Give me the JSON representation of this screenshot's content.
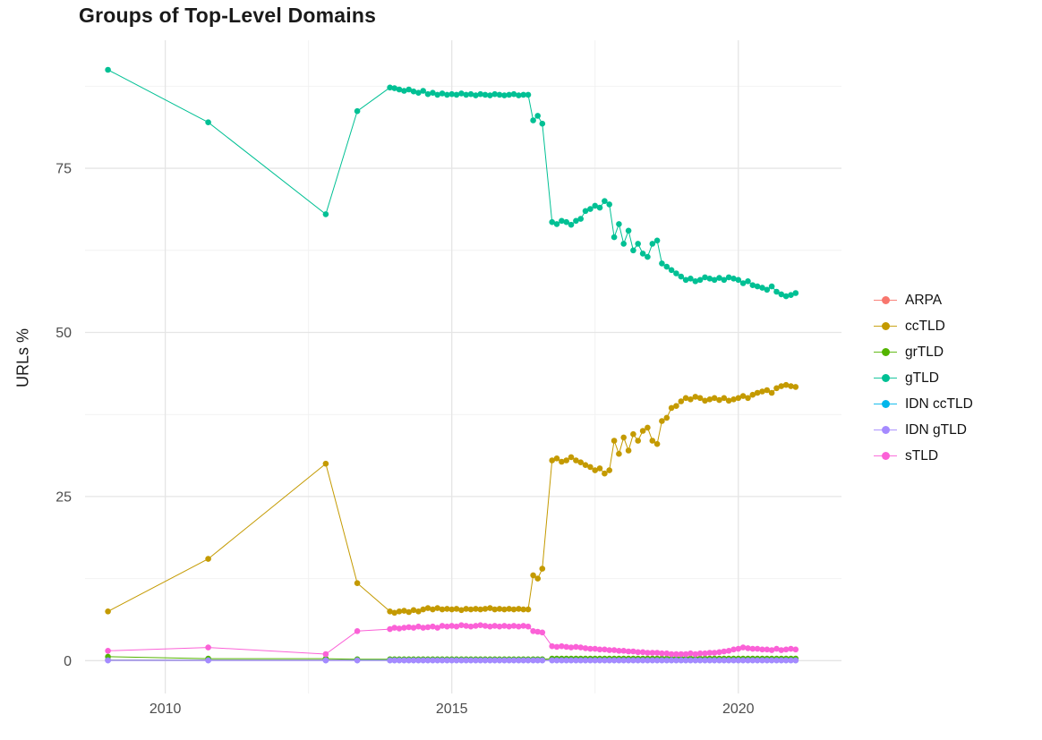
{
  "chart_data": {
    "type": "line",
    "title": "Groups of Top-Level Domains",
    "xlabel": "",
    "ylabel": "URLs %",
    "legend_position": "right",
    "grid": true,
    "xlim": [
      2008.6,
      2021.8
    ],
    "ylim": [
      -5,
      94.5
    ],
    "x_ticks": {
      "values": [
        2010,
        2015,
        2020
      ],
      "labels": [
        "2010",
        "2015",
        "2020"
      ]
    },
    "y_ticks": {
      "values": [
        0,
        25,
        50,
        75
      ],
      "labels": [
        "0",
        "25",
        "50",
        "75"
      ]
    },
    "x_minor": [
      2012.5,
      2017.5
    ],
    "y_minor": [
      12.5,
      37.5,
      62.5,
      87.5
    ],
    "x": [
      2009.0,
      2010.75,
      2012.8,
      2013.35,
      2013.92,
      2014.0,
      2014.083,
      2014.167,
      2014.25,
      2014.333,
      2014.417,
      2014.5,
      2014.583,
      2014.667,
      2014.75,
      2014.833,
      2014.917,
      2015.0,
      2015.083,
      2015.167,
      2015.25,
      2015.333,
      2015.417,
      2015.5,
      2015.583,
      2015.667,
      2015.75,
      2015.833,
      2015.917,
      2016.0,
      2016.083,
      2016.167,
      2016.25,
      2016.333,
      2016.42,
      2016.5,
      2016.58,
      2016.75,
      2016.833,
      2016.917,
      2017.0,
      2017.083,
      2017.167,
      2017.25,
      2017.333,
      2017.417,
      2017.5,
      2017.583,
      2017.667,
      2017.75,
      2017.833,
      2017.917,
      2018.0,
      2018.083,
      2018.167,
      2018.25,
      2018.333,
      2018.417,
      2018.5,
      2018.583,
      2018.667,
      2018.75,
      2018.833,
      2018.917,
      2019.0,
      2019.083,
      2019.167,
      2019.25,
      2019.333,
      2019.417,
      2019.5,
      2019.583,
      2019.667,
      2019.75,
      2019.833,
      2019.917,
      2020.0,
      2020.083,
      2020.167,
      2020.25,
      2020.333,
      2020.417,
      2020.5,
      2020.583,
      2020.667,
      2020.75,
      2020.833,
      2020.917,
      2021.0
    ],
    "series": [
      {
        "name": "ARPA",
        "color": "#F8766D",
        "y_const": 0.1
      },
      {
        "name": "ccTLD",
        "color": "#C49A00",
        "y": [
          7.5,
          15.5,
          30.0,
          11.8,
          7.5,
          7.3,
          7.5,
          7.6,
          7.4,
          7.7,
          7.5,
          7.8,
          8.0,
          7.8,
          8.0,
          7.8,
          7.9,
          7.8,
          7.9,
          7.7,
          7.9,
          7.8,
          7.9,
          7.8,
          7.9,
          8.0,
          7.8,
          7.9,
          7.8,
          7.9,
          7.8,
          7.9,
          7.8,
          7.8,
          13.0,
          12.5,
          14.0,
          30.5,
          30.8,
          30.3,
          30.5,
          31.0,
          30.5,
          30.2,
          29.8,
          29.5,
          29.0,
          29.3,
          28.5,
          29.0,
          33.5,
          31.5,
          34.0,
          32.0,
          34.5,
          33.5,
          35.0,
          35.5,
          33.5,
          33.0,
          36.5,
          37.0,
          38.5,
          38.8,
          39.5,
          40.0,
          39.8,
          40.2,
          40.0,
          39.6,
          39.8,
          40.0,
          39.7,
          40.0,
          39.6,
          39.8,
          40.0,
          40.3,
          40.0,
          40.5,
          40.8,
          41.0,
          41.2,
          40.8,
          41.5,
          41.8,
          42.0,
          41.8,
          41.7
        ]
      },
      {
        "name": "grTLD",
        "color": "#53B400",
        "y": [
          0.6,
          0.3,
          0.3,
          0.2,
          0.2,
          0.2,
          0.2,
          0.2,
          0.2,
          0.2,
          0.2,
          0.2,
          0.2,
          0.2,
          0.2,
          0.2,
          0.2,
          0.2,
          0.2,
          0.2,
          0.2,
          0.2,
          0.2,
          0.2,
          0.2,
          0.2,
          0.2,
          0.2,
          0.2,
          0.2,
          0.2,
          0.2,
          0.2,
          0.2,
          0.2,
          0.2,
          0.2,
          0.3,
          0.3,
          0.3,
          0.3,
          0.3,
          0.3,
          0.3,
          0.3,
          0.3,
          0.3,
          0.3,
          0.3,
          0.3,
          0.3,
          0.3,
          0.3,
          0.3,
          0.3,
          0.3,
          0.3,
          0.3,
          0.3,
          0.3,
          0.3,
          0.3,
          0.3,
          0.3,
          0.3,
          0.3,
          0.3,
          0.3,
          0.3,
          0.3,
          0.3,
          0.3,
          0.3,
          0.3,
          0.3,
          0.3,
          0.3,
          0.3,
          0.3,
          0.3,
          0.3,
          0.3,
          0.3,
          0.3,
          0.3,
          0.3,
          0.3,
          0.3,
          0.3
        ]
      },
      {
        "name": "gTLD",
        "color": "#00C094",
        "y": [
          90.0,
          82.0,
          68.0,
          83.7,
          87.3,
          87.2,
          87.0,
          86.8,
          87.0,
          86.7,
          86.5,
          86.8,
          86.3,
          86.5,
          86.2,
          86.4,
          86.2,
          86.3,
          86.2,
          86.4,
          86.2,
          86.3,
          86.1,
          86.3,
          86.2,
          86.1,
          86.3,
          86.2,
          86.1,
          86.2,
          86.3,
          86.1,
          86.2,
          86.2,
          82.3,
          83.0,
          81.8,
          66.8,
          66.5,
          67.0,
          66.8,
          66.4,
          67.0,
          67.3,
          68.5,
          68.8,
          69.3,
          69.0,
          70.0,
          69.5,
          64.5,
          66.5,
          63.5,
          65.5,
          62.5,
          63.5,
          62.0,
          61.5,
          63.5,
          64.0,
          60.5,
          60.0,
          59.5,
          59.0,
          58.5,
          58.0,
          58.2,
          57.8,
          58.0,
          58.4,
          58.2,
          58.0,
          58.3,
          58.0,
          58.4,
          58.2,
          58.0,
          57.5,
          57.8,
          57.2,
          57.0,
          56.8,
          56.5,
          57.0,
          56.2,
          55.8,
          55.5,
          55.7,
          56.0
        ]
      },
      {
        "name": "IDN ccTLD",
        "color": "#00B6EB",
        "y_const": 0.05
      },
      {
        "name": "IDN gTLD",
        "color": "#A58AFF",
        "y_const": 0.03
      },
      {
        "name": "sTLD",
        "color": "#FB61D7",
        "y": [
          1.5,
          2.0,
          1.0,
          4.5,
          4.8,
          5.0,
          4.9,
          5.0,
          5.1,
          5.0,
          5.2,
          5.0,
          5.1,
          5.2,
          5.0,
          5.3,
          5.2,
          5.3,
          5.2,
          5.4,
          5.3,
          5.2,
          5.3,
          5.4,
          5.3,
          5.2,
          5.3,
          5.2,
          5.3,
          5.2,
          5.3,
          5.2,
          5.3,
          5.2,
          4.5,
          4.4,
          4.3,
          2.2,
          2.1,
          2.2,
          2.1,
          2.0,
          2.1,
          2.0,
          1.9,
          1.8,
          1.8,
          1.7,
          1.7,
          1.6,
          1.6,
          1.5,
          1.5,
          1.4,
          1.4,
          1.3,
          1.3,
          1.2,
          1.2,
          1.2,
          1.1,
          1.1,
          1.0,
          1.0,
          1.0,
          1.0,
          1.1,
          1.0,
          1.1,
          1.1,
          1.2,
          1.2,
          1.3,
          1.4,
          1.5,
          1.7,
          1.8,
          2.0,
          1.9,
          1.8,
          1.8,
          1.7,
          1.7,
          1.6,
          1.8,
          1.6,
          1.7,
          1.8,
          1.7
        ]
      }
    ]
  }
}
